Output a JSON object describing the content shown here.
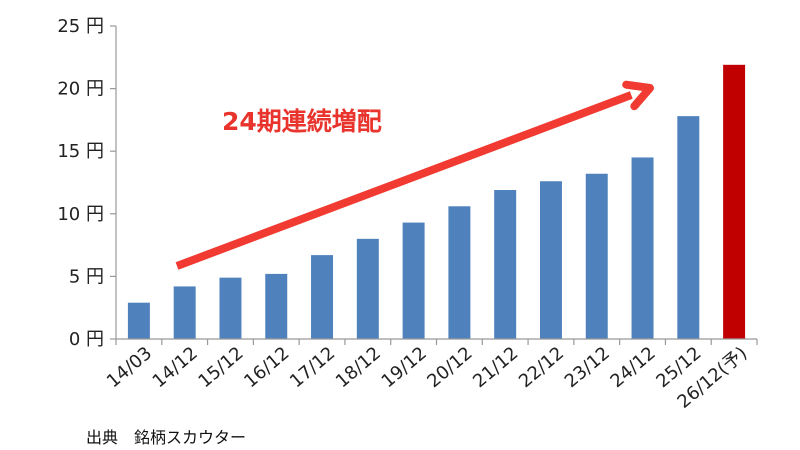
{
  "chart_data": {
    "type": "bar",
    "categories": [
      "14/03",
      "14/12",
      "15/12",
      "16/12",
      "17/12",
      "18/12",
      "19/12",
      "20/12",
      "21/12",
      "22/12",
      "23/12",
      "24/12",
      "25/12",
      "26/12(予)"
    ],
    "values": [
      2.9,
      4.2,
      4.9,
      5.2,
      6.7,
      8.0,
      9.3,
      10.6,
      11.9,
      12.6,
      13.2,
      14.5,
      17.8,
      21.9
    ],
    "ylim": [
      0,
      25
    ],
    "yticks": [
      0,
      5,
      10,
      15,
      20,
      25
    ],
    "ytick_labels": [
      "0 円",
      "5 円",
      "10 円",
      "15 円",
      "20 円",
      "25 円"
    ],
    "colors": {
      "actual": "#4f81bd",
      "forecast": "#c00000",
      "arrow": "#f03a32",
      "annotation": "#e8342c",
      "axis": "#999999"
    },
    "highlight_index": 13,
    "grid": false,
    "annotation": "24期連続増配"
  },
  "source_text": "出典　銘柄スカウター"
}
